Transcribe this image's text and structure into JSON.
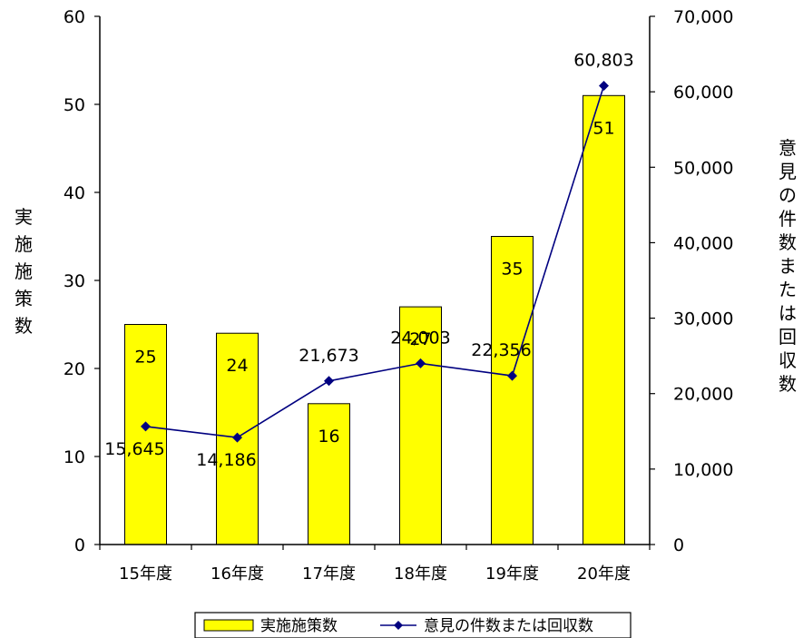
{
  "chart_data": {
    "type": "bar",
    "categories": [
      "15年度",
      "16年度",
      "17年度",
      "18年度",
      "19年度",
      "20年度"
    ],
    "series": [
      {
        "name": "実施施策数",
        "type": "bar",
        "axis": "left",
        "color": "#FFFF00",
        "values": [
          25,
          24,
          16,
          27,
          35,
          51
        ],
        "labels": [
          "25",
          "24",
          "16",
          "27",
          "35",
          "51"
        ]
      },
      {
        "name": "意見の件数または回収数",
        "type": "line",
        "axis": "right",
        "color": "#000080",
        "values": [
          15645,
          14186,
          21673,
          24003,
          22356,
          60803
        ],
        "labels": [
          "15,645",
          "14,186",
          "21,673",
          "24,003",
          "22,356",
          "60,803"
        ]
      }
    ],
    "ylabel": "実施施策数",
    "y2label": "意見の件数または回収数",
    "ylim": [
      0,
      60
    ],
    "y2lim": [
      0,
      70000
    ],
    "yticks": [
      "0",
      "10",
      "20",
      "30",
      "40",
      "50",
      "60"
    ],
    "y2ticks": [
      "0",
      "10,000",
      "20,000",
      "30,000",
      "40,000",
      "50,000",
      "60,000",
      "70,000"
    ],
    "grid": false,
    "legend_position": "bottom"
  }
}
